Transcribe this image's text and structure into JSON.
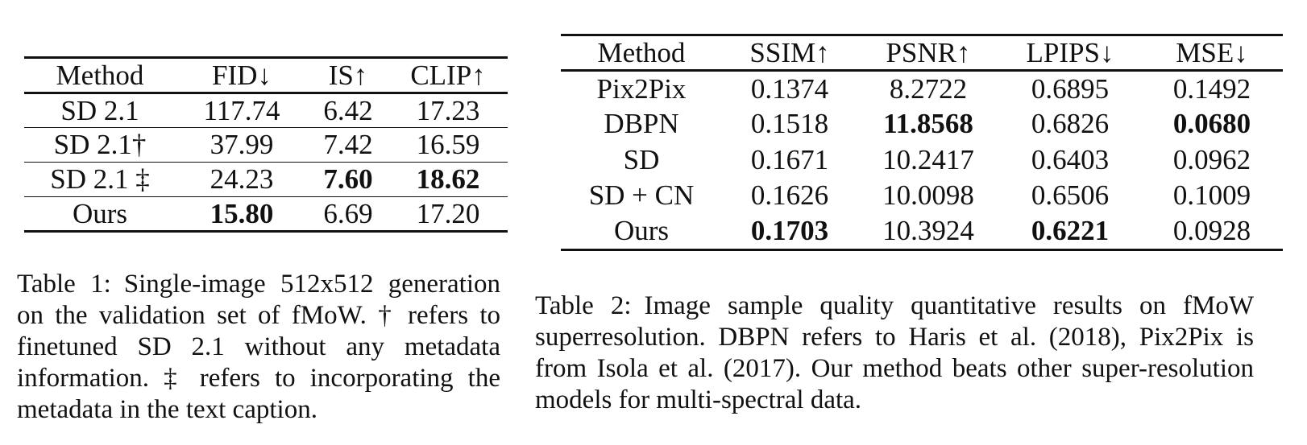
{
  "table1": {
    "columns": [
      "Method",
      "FID↓",
      "IS↑",
      "CLIP↑"
    ],
    "rows": [
      {
        "cells": [
          "SD 2.1",
          "117.74",
          "6.42",
          "17.23"
        ],
        "bold": [
          false,
          false,
          false,
          false
        ]
      },
      {
        "cells": [
          "SD 2.1†",
          "37.99",
          "7.42",
          "16.59"
        ],
        "bold": [
          false,
          false,
          false,
          false
        ]
      },
      {
        "cells": [
          "SD 2.1 ‡",
          "24.23",
          "7.60",
          "18.62"
        ],
        "bold": [
          false,
          false,
          true,
          true
        ]
      },
      {
        "cells": [
          "Ours",
          "15.80",
          "6.69",
          "17.20"
        ],
        "bold": [
          false,
          true,
          false,
          false
        ]
      }
    ],
    "caption_label": "Table 1:",
    "caption_text": "Single-image 512x512 generation on the validation set of fMoW. † refers to finetuned SD 2.1 without any metadata information. ‡ refers to incorporating the metadata in the text caption."
  },
  "table2": {
    "columns": [
      "Method",
      "SSIM↑",
      "PSNR↑",
      "LPIPS↓",
      "MSE↓"
    ],
    "rows": [
      {
        "cells": [
          "Pix2Pix",
          "0.1374",
          "8.2722",
          "0.6895",
          "0.1492"
        ],
        "bold": [
          false,
          false,
          false,
          false,
          false
        ]
      },
      {
        "cells": [
          "DBPN",
          "0.1518",
          "11.8568",
          "0.6826",
          "0.0680"
        ],
        "bold": [
          false,
          false,
          true,
          false,
          true
        ]
      },
      {
        "cells": [
          "SD",
          "0.1671",
          "10.2417",
          "0.6403",
          "0.0962"
        ],
        "bold": [
          false,
          false,
          false,
          false,
          false
        ]
      },
      {
        "cells": [
          "SD + CN",
          "0.1626",
          "10.0098",
          "0.6506",
          "0.1009"
        ],
        "bold": [
          false,
          false,
          false,
          false,
          false
        ]
      },
      {
        "cells": [
          "Ours",
          "0.1703",
          "10.3924",
          "0.6221",
          "0.0928"
        ],
        "bold": [
          false,
          true,
          false,
          true,
          false
        ]
      }
    ],
    "caption_label": "Table 2:",
    "caption_text": "Image sample quality quantitative results on fMoW superresolution. DBPN refers to  Haris et al. (2018), Pix2Pix is from  Isola et al. (2017). Our method beats other super-resolution models for multi-spectral data."
  }
}
